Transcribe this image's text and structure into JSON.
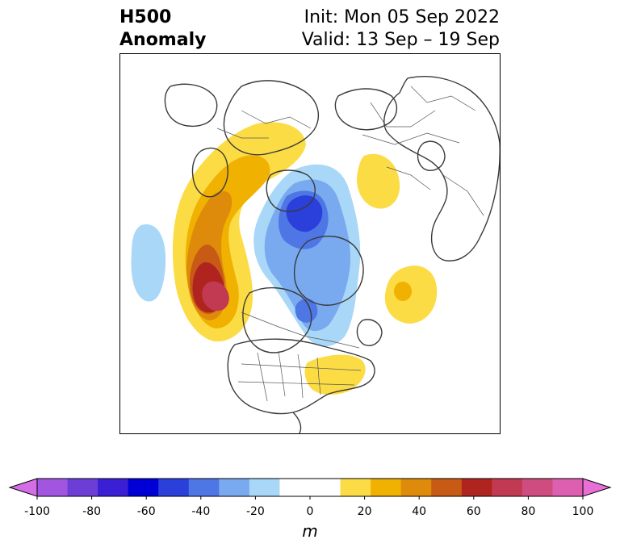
{
  "header": {
    "title_line1": "H500",
    "title_line2": "Anomaly",
    "init_text": "Init: Mon 05 Sep 2022",
    "valid_text": "Valid: 13 Sep – 19 Sep"
  },
  "colorbar": {
    "unit": "m",
    "ticks": [
      "-100",
      "-80",
      "-60",
      "-40",
      "-20",
      "0",
      "20",
      "40",
      "60",
      "80",
      "100"
    ],
    "range": [
      -100,
      100
    ],
    "step": 10,
    "extend": "both",
    "colors": [
      "#d36ee6",
      "#a256e0",
      "#6c3ed6",
      "#3a1fd4",
      "#0000d6",
      "#2b3fdb",
      "#4f76e5",
      "#79aaf0",
      "#a9d7f7",
      "#ffffff",
      "#ffffff",
      "#fcdc45",
      "#f0b100",
      "#de8b0c",
      "#c75b15",
      "#b02420",
      "#c23a52",
      "#cf4c80",
      "#dc5fb0",
      "#e76fd5"
    ]
  },
  "map": {
    "projection": "north-polar-stereographic",
    "region": "Northern Hemisphere",
    "features": [
      "anomaly-contours",
      "coastlines",
      "country-borders",
      "state-borders"
    ]
  }
}
